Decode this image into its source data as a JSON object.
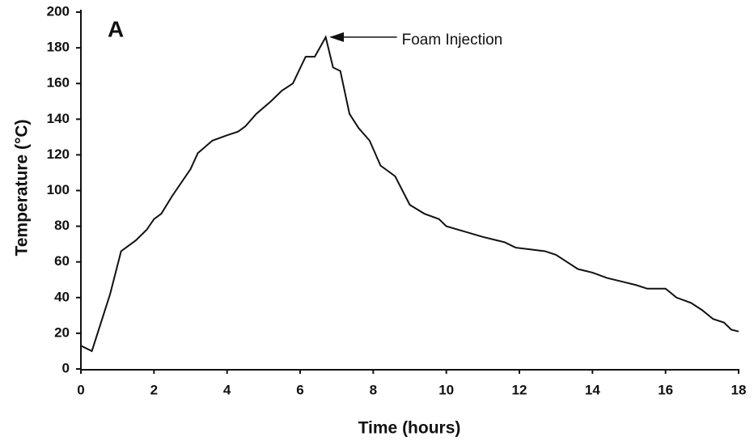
{
  "chart_data": {
    "type": "line",
    "panel_label": "A",
    "annotation": "Foam Injection",
    "xlabel": "Time (hours)",
    "ylabel": "Temperature (°C)",
    "x": [
      0,
      0.3,
      0.8,
      1.1,
      1.5,
      1.8,
      2.0,
      2.2,
      2.5,
      3.0,
      3.2,
      3.6,
      4.0,
      4.3,
      4.5,
      4.8,
      5.2,
      5.5,
      5.8,
      6.15,
      6.4,
      6.7,
      6.9,
      7.1,
      7.35,
      7.6,
      7.9,
      8.2,
      8.6,
      9.0,
      9.4,
      9.8,
      10.0,
      10.5,
      11.0,
      11.4,
      11.6,
      11.9,
      12.3,
      12.7,
      13.0,
      13.3,
      13.6,
      14.0,
      14.4,
      14.8,
      15.2,
      15.5,
      16.0,
      16.3,
      16.7,
      17.0,
      17.3,
      17.6,
      17.8,
      18.0
    ],
    "series": [
      {
        "name": "Temperature",
        "color": "#111111",
        "values": [
          13,
          10,
          42,
          66,
          72,
          78,
          84,
          87,
          97,
          112,
          121,
          128,
          131,
          133,
          136,
          143,
          150,
          156,
          160,
          175,
          175,
          186,
          169,
          167,
          143,
          135,
          128,
          114,
          108,
          92,
          87,
          84,
          80,
          77,
          74,
          72,
          71,
          68,
          67,
          66,
          64,
          60,
          56,
          54,
          51,
          49,
          47,
          45,
          45,
          40,
          37,
          33,
          28,
          26,
          22,
          21
        ]
      }
    ],
    "xlim": [
      0,
      18
    ],
    "xticks": [
      0,
      2,
      4,
      6,
      8,
      10,
      12,
      14,
      16,
      18
    ],
    "ylim": [
      0,
      200
    ],
    "yticks": [
      0,
      20,
      40,
      60,
      80,
      100,
      120,
      140,
      160,
      180,
      200
    ],
    "grid": false
  }
}
